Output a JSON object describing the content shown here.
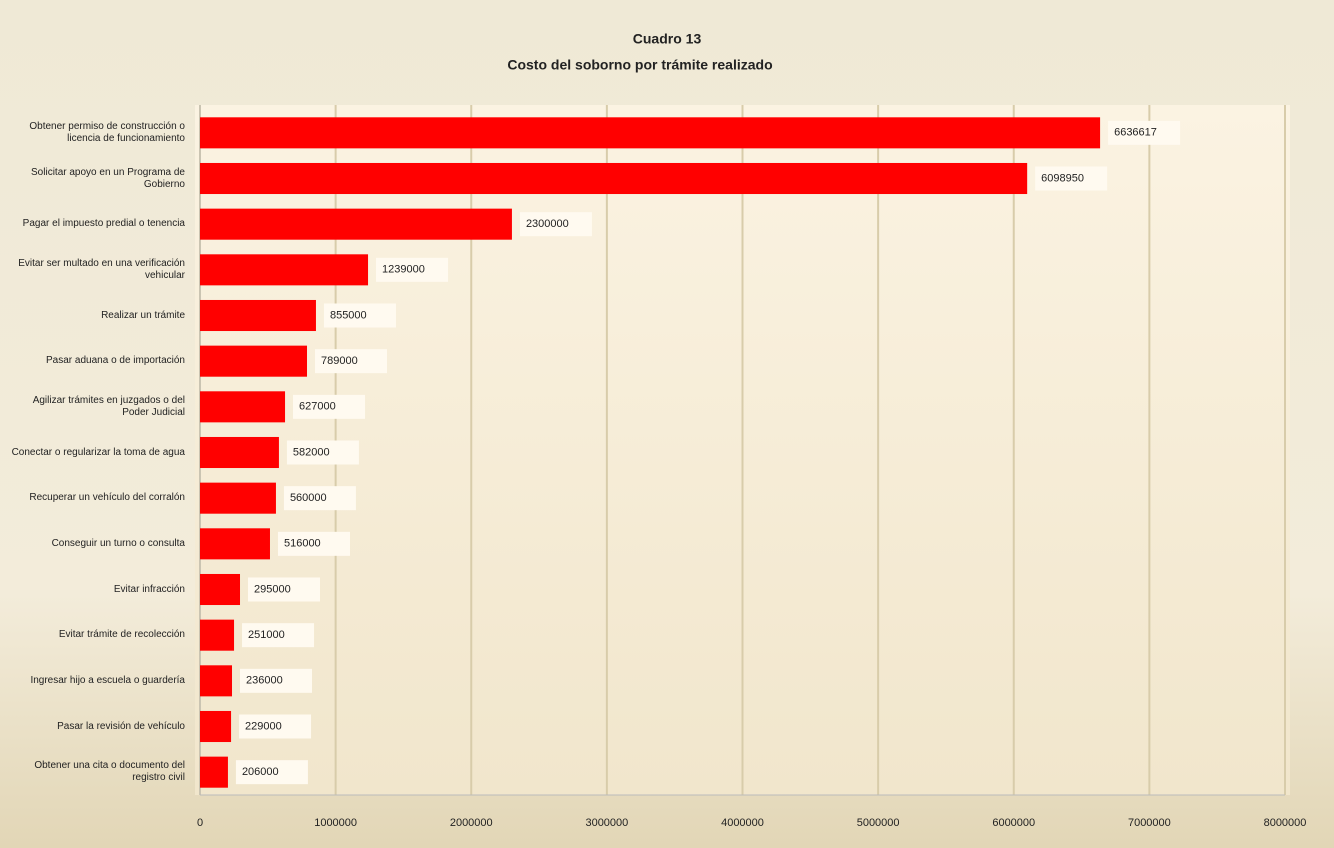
{
  "chart_data": {
    "type": "bar",
    "orientation": "horizontal",
    "title": "Cuadro 13",
    "subtitle": "Costo del soborno por trámite realizado",
    "categories": [
      "Obtener permiso de construcción o licencia de funcionamiento",
      "Solicitar apoyo en un Programa de Gobierno",
      "Pagar el impuesto predial o tenencia",
      "Evitar ser multado en una verificación vehicular",
      "Realizar un trámite",
      "Pasar aduana o de importación",
      "Agilizar trámites en juzgados o del Poder Judicial",
      "Conectar o regularizar la toma de agua",
      "Recuperar un vehículo del corralón",
      "Conseguir un turno o consulta",
      "Evitar infracción",
      "Evitar trámite de recolección",
      "Ingresar hijo a escuela o guardería",
      "Pasar la revisión de vehículo",
      "Obtener una cita o documento del registro civil"
    ],
    "values": [
      6636617,
      6098950,
      2300000,
      1239000,
      855000,
      789000,
      627000,
      582000,
      560000,
      516000,
      295000,
      251000,
      236000,
      229000,
      206000
    ],
    "color": "#ff0000",
    "xlim": [
      0,
      8000000
    ],
    "xticks": [
      0,
      1000000,
      2000000,
      3000000,
      4000000,
      5000000,
      6000000,
      7000000,
      8000000
    ],
    "grid": true
  }
}
